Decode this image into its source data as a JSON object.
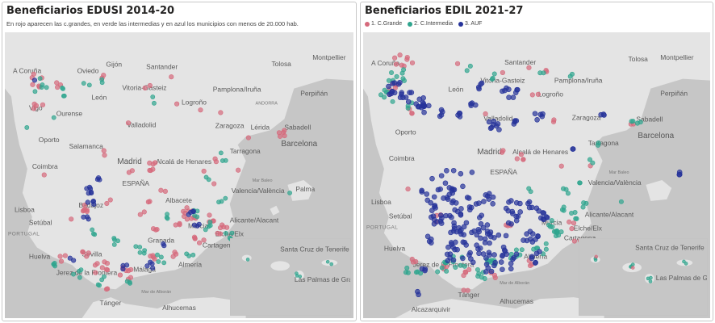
{
  "left": {
    "title": "Beneficiarios EDUSI 2014-20",
    "subtitle": "En rojo aparecen las c.grandes, en verde las intermedias y en azul los municipios con menos de 20.000 hab."
  },
  "right": {
    "title": "Beneficiarios EDIL 2021-27",
    "legend": [
      {
        "label": "1. C.Grande",
        "color": "#d66a7c"
      },
      {
        "label": "2. C.Intermedia",
        "color": "#2fa58e"
      },
      {
        "label": "3. AUF",
        "color": "#26339a"
      }
    ]
  },
  "colors": {
    "grande": "#d66a7c",
    "intermedia": "#2fa58e",
    "auf": "#26339a",
    "land": "#e4e4e4",
    "sea": "#c6c6c6"
  },
  "map_labels": {
    "acoruna": "A Coruña",
    "gijon": "Gijón",
    "oviedo": "Oviedo",
    "santander": "Santander",
    "vitoria": "Vitoria-Gasteiz",
    "pamplona": "Pamplona/Iruña",
    "tolosa": "Tolosa",
    "montpellier": "Montpellier",
    "perpinan": "Perpiñán",
    "andorra": "ANDORRA",
    "leon": "León",
    "logrono": "Logroño",
    "ourense": "Ourense",
    "vigo": "Vigo",
    "valladolid": "Valladolid",
    "zaragoza": "Zaragoza",
    "lerida": "Lérida",
    "sabadell": "Sabadell",
    "barcelona": "Barcelona",
    "oporto": "Oporto",
    "salamanca": "Salamanca",
    "tarragona": "Tarragona",
    "coimbra": "Coimbra",
    "madrid": "Madrid",
    "alcala": "Alcalá de Henares",
    "espana": "ESPAÑA",
    "marbaleo": "Mar Baleo",
    "valencia": "Valencia/València",
    "palma": "Palma",
    "lisboa": "Lisboa",
    "badajoz": "Badajoz",
    "albacete": "Albacete",
    "setubal": "Setúbal",
    "portugal": "PORTUGAL",
    "murcia": "Murcia",
    "alicante": "Alicante/Alacant",
    "elche": "Elche/Elx",
    "cartagena": "Cartagena",
    "huelva": "Huelva",
    "sevilla": "Sevilla",
    "granada": "Granada",
    "almeria": "Almería",
    "malaga": "Málaga",
    "jerez": "Jerez de la Frontera",
    "maralboran": "Mar de Alborán",
    "tanger": "Tánger",
    "alhucemas": "Alhucemas",
    "alcazarquivir": "Alcazarquivir",
    "santacruz": "Santa Cruz de Tenerife",
    "laspalmas": "Las Palmas de Gran Canaria"
  }
}
